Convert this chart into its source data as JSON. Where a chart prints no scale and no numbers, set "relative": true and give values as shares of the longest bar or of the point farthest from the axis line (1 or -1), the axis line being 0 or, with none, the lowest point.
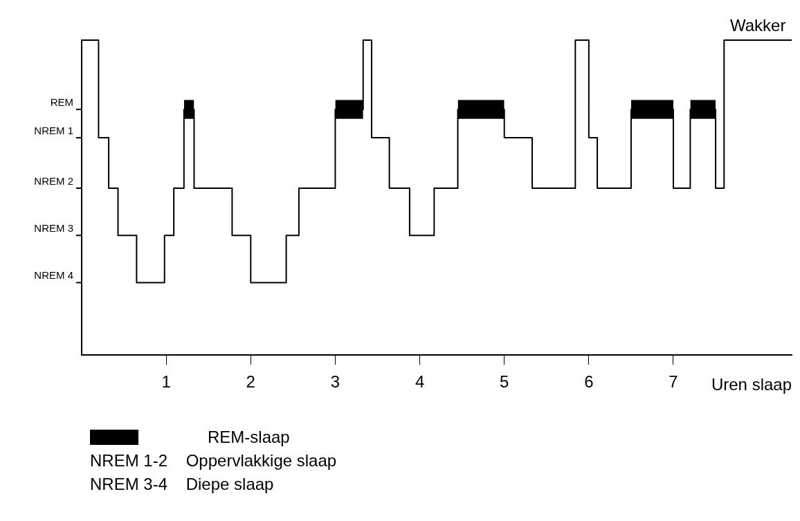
{
  "chart_data": {
    "type": "step",
    "relative": true,
    "xlabel": "Uren slaap",
    "xlim": [
      0,
      8.4
    ],
    "xticks": [
      1,
      2,
      3,
      4,
      5,
      6,
      7
    ],
    "grid": false,
    "legend": "bottom",
    "marker": "none",
    "series": [
      {
        "color": "#000000",
        "x": [
          0,
          0.2,
          0.32,
          0.43,
          0.65,
          0.98,
          1.09,
          1.21,
          1.33,
          1.78,
          2.0,
          2.42,
          2.57,
          3.0,
          3.33,
          3.43,
          3.64,
          3.88,
          4.17,
          4.45,
          5.0,
          5.33,
          5.84,
          6.0,
          6.1,
          6.5,
          7.0,
          7.2,
          7.5,
          7.6,
          8.4
        ],
        "values": [
          1,
          0.69,
          0.53,
          0.38,
          0.23,
          0.38,
          0.53,
          0.78,
          0.53,
          0.38,
          0.23,
          0.38,
          0.53,
          0.78,
          1,
          0.69,
          0.53,
          0.38,
          0.53,
          0.78,
          0.69,
          0.53,
          1,
          0.69,
          0.53,
          0.78,
          0.53,
          0.78,
          0.53,
          1,
          1
        ]
      },
      {
        "name": "REM-slaap",
        "color": "#000000",
        "x": [
          1.21,
          1.33,
          1.4,
          3.0,
          3.33,
          3.4,
          4.45,
          5.0,
          5.1,
          6.5,
          7.0,
          7.1,
          7.2,
          7.5
        ],
        "values": [
          0.78,
          0.78,
          null,
          0.78,
          0.78,
          null,
          0.78,
          0.78,
          null,
          0.78,
          0.78,
          null,
          0.78,
          0.78
        ],
        "lower": [
          0.75,
          0.75,
          null,
          0.75,
          0.75,
          null,
          0.75,
          0.75,
          null,
          0.75,
          0.75,
          null,
          0.75,
          0.75
        ],
        "upper": [
          0.81,
          0.81,
          null,
          0.81,
          0.81,
          null,
          0.81,
          0.81,
          null,
          0.81,
          0.81,
          null,
          0.81,
          0.81
        ]
      }
    ],
    "annotations": [
      {
        "text": "Wakker",
        "x": 8.0,
        "y": 1
      },
      "NREM 4",
      "NREM 3",
      "NREM 2",
      "NREM 1",
      "REM",
      "NREM 1-2    Oppervlakkige slaap",
      "NREM 3-4    Diepe slaap"
    ]
  }
}
